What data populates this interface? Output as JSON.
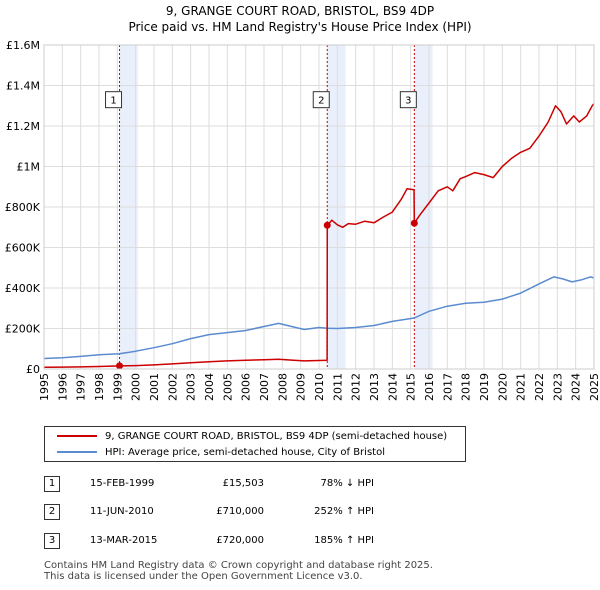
{
  "chart_data": {
    "type": "line",
    "title": "9, GRANGE COURT ROAD, BRISTOL, BS9 4DP",
    "subtitle": "Price paid vs. HM Land Registry's House Price Index (HPI)",
    "xlim": [
      1995,
      2025
    ],
    "ylim": [
      0,
      1600000
    ],
    "x_ticks": [
      "1995",
      "1996",
      "1997",
      "1998",
      "1999",
      "2000",
      "2001",
      "2002",
      "2003",
      "2004",
      "2005",
      "2006",
      "2007",
      "2008",
      "2009",
      "2010",
      "2011",
      "2012",
      "2013",
      "2014",
      "2015",
      "2016",
      "2017",
      "2018",
      "2019",
      "2020",
      "2021",
      "2022",
      "2023",
      "2024",
      "2025"
    ],
    "y_ticks": [
      {
        "value": 0,
        "label": "£0"
      },
      {
        "value": 200000,
        "label": "£200K"
      },
      {
        "value": 400000,
        "label": "£400K"
      },
      {
        "value": 600000,
        "label": "£600K"
      },
      {
        "value": 800000,
        "label": "£800K"
      },
      {
        "value": 1000000,
        "label": "£1M"
      },
      {
        "value": 1200000,
        "label": "£1.2M"
      },
      {
        "value": 1400000,
        "label": "£1.4M"
      },
      {
        "value": 1600000,
        "label": "£1.6M"
      }
    ],
    "series": [
      {
        "name": "9, GRANGE COURT ROAD, BRISTOL, BS9 4DP (semi-detached house)",
        "color": "#cc0000",
        "points": [
          [
            1995.0,
            9000
          ],
          [
            1996.0,
            9500
          ],
          [
            1997.0,
            10500
          ],
          [
            1998.0,
            12500
          ],
          [
            1999.12,
            15503
          ],
          [
            2000.0,
            17000
          ],
          [
            2001.0,
            20000
          ],
          [
            2002.0,
            25000
          ],
          [
            2003.0,
            31000
          ],
          [
            2004.0,
            36000
          ],
          [
            2005.0,
            40000
          ],
          [
            2006.0,
            43000
          ],
          [
            2007.0,
            46000
          ],
          [
            2007.8,
            48000
          ],
          [
            2008.5,
            44000
          ],
          [
            2009.2,
            40000
          ],
          [
            2010.0,
            42000
          ],
          [
            2010.44,
            43000
          ],
          [
            2010.45,
            710000
          ],
          [
            2010.7,
            735000
          ],
          [
            2011.0,
            712000
          ],
          [
            2011.3,
            700000
          ],
          [
            2011.6,
            718000
          ],
          [
            2012.0,
            715000
          ],
          [
            2012.5,
            730000
          ],
          [
            2013.0,
            722000
          ],
          [
            2013.5,
            750000
          ],
          [
            2014.0,
            775000
          ],
          [
            2014.5,
            840000
          ],
          [
            2014.8,
            890000
          ],
          [
            2015.18,
            885000
          ],
          [
            2015.2,
            720000
          ],
          [
            2015.5,
            760000
          ],
          [
            2016.0,
            820000
          ],
          [
            2016.5,
            880000
          ],
          [
            2017.0,
            900000
          ],
          [
            2017.3,
            880000
          ],
          [
            2017.7,
            940000
          ],
          [
            2018.0,
            950000
          ],
          [
            2018.5,
            970000
          ],
          [
            2019.0,
            960000
          ],
          [
            2019.5,
            945000
          ],
          [
            2020.0,
            1000000
          ],
          [
            2020.5,
            1040000
          ],
          [
            2021.0,
            1070000
          ],
          [
            2021.5,
            1090000
          ],
          [
            2022.0,
            1150000
          ],
          [
            2022.5,
            1220000
          ],
          [
            2022.9,
            1300000
          ],
          [
            2023.2,
            1270000
          ],
          [
            2023.5,
            1210000
          ],
          [
            2023.9,
            1250000
          ],
          [
            2024.2,
            1220000
          ],
          [
            2024.6,
            1250000
          ],
          [
            2024.9,
            1300000
          ],
          [
            2025.0,
            1310000
          ]
        ]
      },
      {
        "name": "HPI: Average price, semi-detached house, City of Bristol",
        "color": "#5b8bd0",
        "points": [
          [
            1995.0,
            52000
          ],
          [
            1996.0,
            56000
          ],
          [
            1997.0,
            62000
          ],
          [
            1998.0,
            70000
          ],
          [
            1999.12,
            75000
          ],
          [
            2000.0,
            88000
          ],
          [
            2001.0,
            105000
          ],
          [
            2002.0,
            125000
          ],
          [
            2003.0,
            150000
          ],
          [
            2004.0,
            170000
          ],
          [
            2005.0,
            180000
          ],
          [
            2006.0,
            190000
          ],
          [
            2007.0,
            210000
          ],
          [
            2007.8,
            225000
          ],
          [
            2008.5,
            210000
          ],
          [
            2009.2,
            195000
          ],
          [
            2010.0,
            205000
          ],
          [
            2010.45,
            201000
          ],
          [
            2011.0,
            200000
          ],
          [
            2012.0,
            205000
          ],
          [
            2013.0,
            215000
          ],
          [
            2014.0,
            235000
          ],
          [
            2015.2,
            252000
          ],
          [
            2016.0,
            285000
          ],
          [
            2017.0,
            310000
          ],
          [
            2018.0,
            325000
          ],
          [
            2019.0,
            330000
          ],
          [
            2020.0,
            345000
          ],
          [
            2021.0,
            375000
          ],
          [
            2022.0,
            420000
          ],
          [
            2022.8,
            455000
          ],
          [
            2023.3,
            445000
          ],
          [
            2023.8,
            430000
          ],
          [
            2024.3,
            440000
          ],
          [
            2024.8,
            455000
          ],
          [
            2025.0,
            450000
          ]
        ]
      }
    ],
    "sales": [
      {
        "num": "1",
        "x": 1999.12,
        "price": 15503,
        "date": "15-FEB-1999",
        "price_label": "£15,503",
        "hpi_label": "78% ↓ HPI"
      },
      {
        "num": "2",
        "x": 2010.45,
        "price": 710000,
        "date": "11-JUN-2010",
        "price_label": "£710,000",
        "hpi_label": "252% ↑ HPI"
      },
      {
        "num": "3",
        "x": 2015.2,
        "price": 720000,
        "date": "13-MAR-2015",
        "price_label": "£720,000",
        "hpi_label": "185% ↑ HPI"
      }
    ],
    "marker_label_value": 1330000
  },
  "colors": {
    "property": "#cc0000",
    "hpi": "#5b8bd0",
    "band": "#eaf0fb",
    "grid": "#dddddd"
  },
  "legend": {
    "property_label": "9, GRANGE COURT ROAD, BRISTOL, BS9 4DP (semi-detached house)",
    "hpi_label": "HPI: Average price, semi-detached house, City of Bristol"
  },
  "footer": {
    "line1": "Contains HM Land Registry data © Crown copyright and database right 2025.",
    "line2": "This data is licensed under the Open Government Licence v3.0."
  }
}
